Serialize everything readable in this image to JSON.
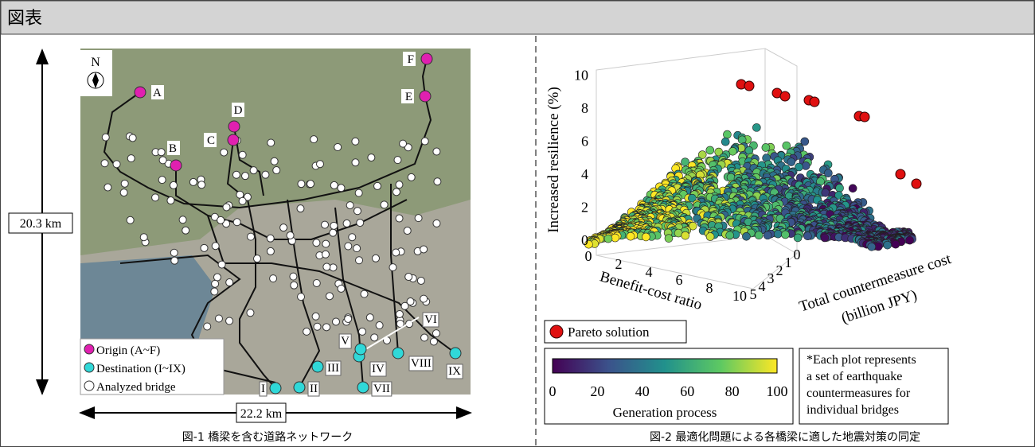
{
  "header": {
    "title": "図表"
  },
  "figure1": {
    "caption": "図-1 橋梁を含む道路ネットワーク",
    "scale": {
      "vertical": "20.3 km",
      "horizontal": "22.2 km"
    },
    "compass": "N",
    "origins": [
      "A",
      "B",
      "C",
      "D",
      "E",
      "F"
    ],
    "destinations": [
      "I",
      "II",
      "III",
      "IV",
      "V",
      "VI",
      "VII",
      "VIII",
      "IX"
    ],
    "legend": [
      "Origin (A~F)",
      "Destination (I~IX)",
      "Analyzed bridge"
    ]
  },
  "figure2": {
    "caption": "図-2 最適化問題による各橋梁に適した地震対策の同定",
    "y_label": "Increased resilience (%)",
    "x_label": "Benefit-cost ratio",
    "z_label": [
      "Total countermeasure cost",
      "(billion JPY)"
    ],
    "y_ticks": [
      "0",
      "2",
      "4",
      "6",
      "8",
      "10"
    ],
    "x_ticks": [
      "0",
      "2",
      "4",
      "6",
      "8",
      "10"
    ],
    "z_ticks": [
      "0",
      "1",
      "2",
      "3",
      "4",
      "5"
    ],
    "pareto_label": "Pareto solution",
    "colorbar": {
      "label": "Generation process",
      "ticks": [
        "0",
        "20",
        "40",
        "60",
        "80",
        "100"
      ]
    },
    "note": [
      "*Each plot represents",
      "a set of earthquake",
      "countermeasures for",
      "individual bridges"
    ]
  }
}
